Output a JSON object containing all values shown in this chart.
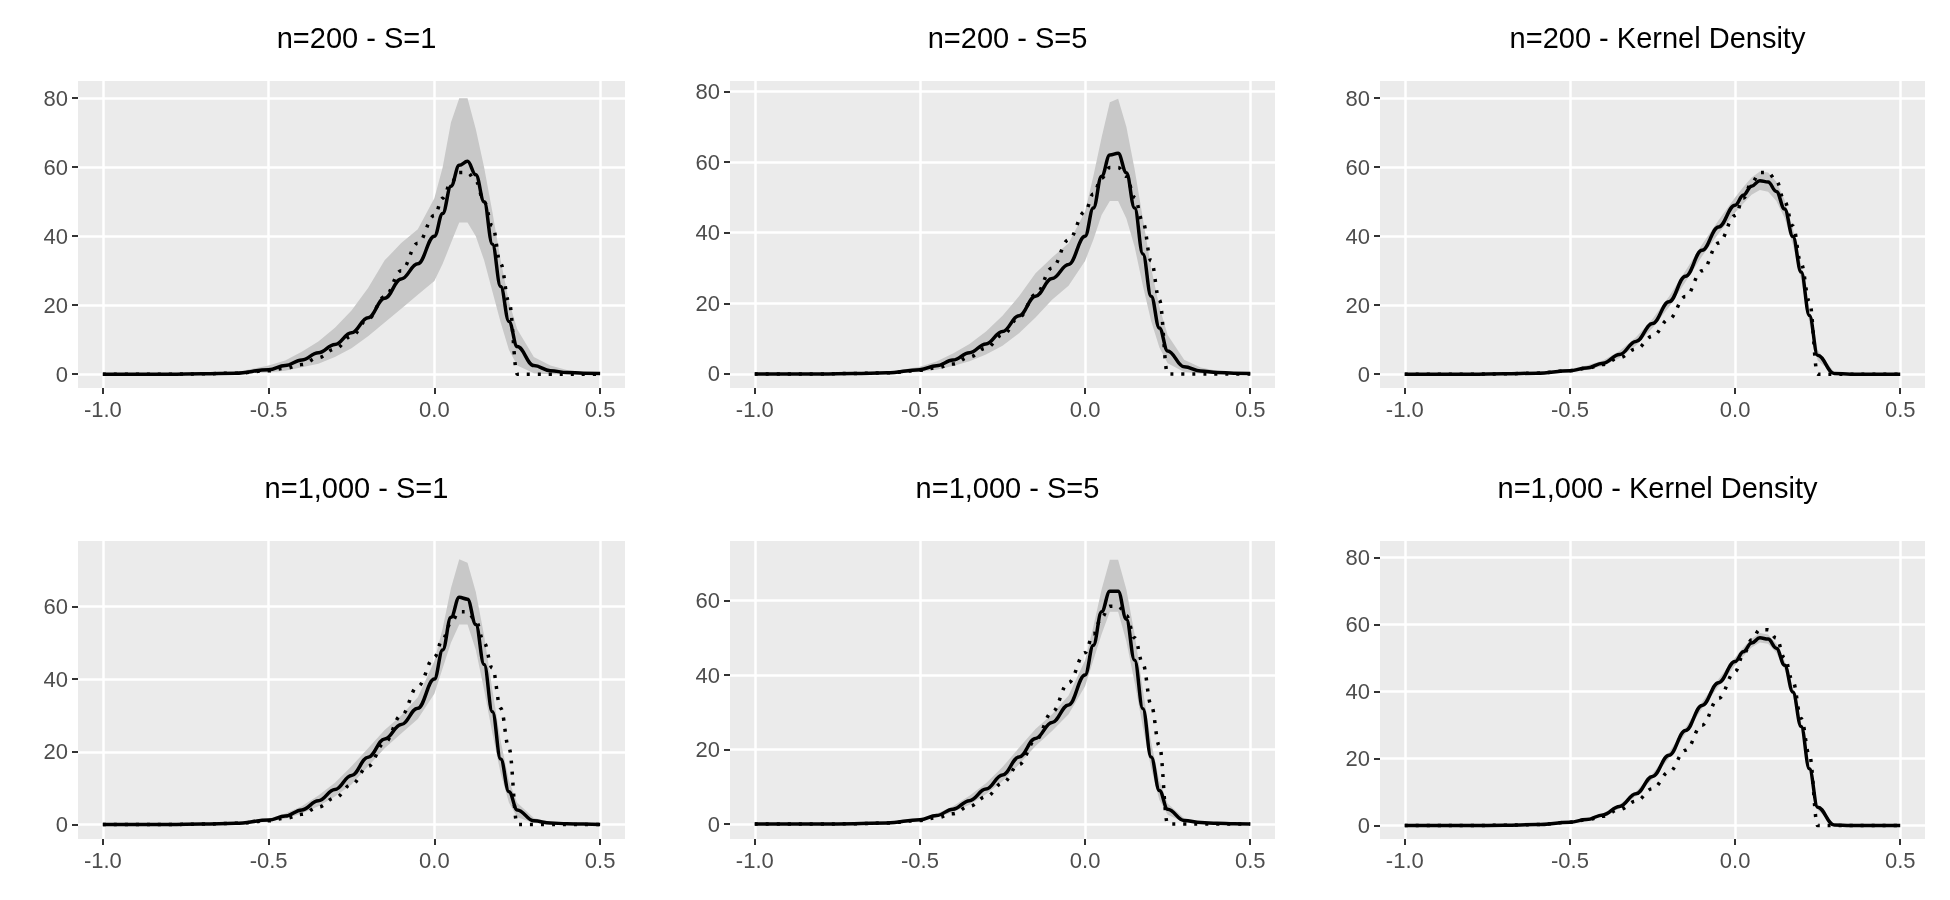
{
  "chart_data": [
    {
      "type": "line",
      "title": "n=200 - S=1",
      "marker": "none",
      "grid": true,
      "xlim": [
        -1.075,
        0.575
      ],
      "xticks": [
        {
          "value": -1,
          "label": "-1.0"
        },
        {
          "value": -0.5,
          "label": "-0.5"
        },
        {
          "value": 0,
          "label": "0.0"
        },
        {
          "value": 0.5,
          "label": "0.5"
        }
      ],
      "ylim": [
        -4,
        85
      ],
      "yticks": [
        0,
        20,
        40,
        60,
        80
      ],
      "x": [
        -1.0,
        -0.9,
        -0.8,
        -0.7,
        -0.6,
        -0.5,
        -0.45,
        -0.4,
        -0.35,
        -0.3,
        -0.25,
        -0.2,
        -0.15,
        -0.1,
        -0.05,
        0,
        0.025,
        0.05,
        0.075,
        0.1,
        0.125,
        0.15,
        0.175,
        0.2,
        0.225,
        0.25,
        0.3,
        0.35,
        0.4,
        0.45,
        0.5
      ],
      "series": [
        {
          "type": "line",
          "color": "#000000",
          "line_style": "solid",
          "values": [
            0,
            0,
            0,
            0.1,
            0.3,
            1.3,
            2.5,
            4.1,
            6.2,
            8.6,
            12,
            16.4,
            22,
            27.6,
            32,
            40,
            46.6,
            54.5,
            60.6,
            61.7,
            57.8,
            50,
            37.7,
            25.4,
            15.3,
            8,
            2.5,
            1,
            0.5,
            0.3,
            0.2
          ],
          "upper": [
            0,
            0,
            0,
            0.1,
            0.6,
            2.5,
            4,
            6.5,
            9.5,
            13.5,
            18.5,
            25,
            33,
            38,
            42,
            51,
            60,
            73,
            80,
            80,
            71,
            60,
            47,
            33,
            21,
            13,
            5,
            2.5,
            1.2,
            0.6,
            0.3
          ],
          "lower": [
            0,
            0,
            0,
            0,
            0.1,
            0.5,
            1,
            2,
            3,
            5,
            7.5,
            11,
            15,
            19,
            23,
            27,
            32,
            38,
            44,
            44,
            40,
            33,
            24,
            15,
            7,
            2.5,
            0.3,
            0,
            0,
            0,
            0
          ]
        },
        {
          "type": "line",
          "color": "#000000",
          "line_style": "dotted",
          "values": [
            0,
            0,
            0,
            0.1,
            0.3,
            1,
            1.7,
            2.8,
            4.8,
            7.3,
            11,
            16,
            22.5,
            30,
            38,
            46,
            51,
            55.5,
            58.5,
            58.5,
            56,
            50,
            43,
            32,
            21,
            0,
            0,
            0,
            0,
            0,
            0
          ]
        }
      ]
    },
    {
      "type": "line",
      "title": "n=200 - S=5",
      "marker": "none",
      "grid": true,
      "xlim": [
        -1.075,
        0.575
      ],
      "xticks": [
        {
          "value": -1,
          "label": "-1.0"
        },
        {
          "value": -0.5,
          "label": "-0.5"
        },
        {
          "value": 0,
          "label": "0.0"
        },
        {
          "value": 0.5,
          "label": "0.5"
        }
      ],
      "ylim": [
        -4,
        83
      ],
      "yticks": [
        0,
        20,
        40,
        60,
        80
      ],
      "x": [
        -1.0,
        -0.9,
        -0.8,
        -0.7,
        -0.6,
        -0.5,
        -0.45,
        -0.4,
        -0.35,
        -0.3,
        -0.25,
        -0.2,
        -0.15,
        -0.1,
        -0.05,
        0,
        0.025,
        0.05,
        0.075,
        0.1,
        0.125,
        0.15,
        0.175,
        0.2,
        0.225,
        0.25,
        0.3,
        0.35,
        0.4,
        0.45,
        0.5
      ],
      "series": [
        {
          "type": "line",
          "color": "#000000",
          "line_style": "solid",
          "values": [
            0,
            0,
            0,
            0.1,
            0.3,
            1.2,
            2.3,
            3.9,
            6,
            8.5,
            12,
            16.5,
            22,
            27,
            31,
            39,
            47,
            56,
            62,
            62.5,
            57,
            47,
            34,
            22,
            13,
            6.5,
            2,
            0.8,
            0.4,
            0.2,
            0.1
          ],
          "upper": [
            0,
            0,
            0,
            0.1,
            0.5,
            2,
            3.5,
            5.8,
            8.5,
            12,
            16.5,
            22,
            28.5,
            33,
            37,
            46,
            56,
            67,
            77,
            78,
            70,
            58,
            44,
            30,
            19,
            11,
            4,
            1.8,
            0.9,
            0.4,
            0.2
          ],
          "lower": [
            0,
            0,
            0,
            0,
            0.1,
            0.6,
            1.2,
            2.2,
            3.6,
            5.5,
            8,
            11.5,
            16,
            21,
            25,
            32,
            38,
            45,
            49,
            49,
            44,
            36,
            25,
            15,
            7.5,
            3,
            0.5,
            0.1,
            0,
            0,
            0
          ]
        },
        {
          "type": "line",
          "color": "#000000",
          "line_style": "dotted",
          "values": [
            0,
            0,
            0,
            0.1,
            0.3,
            1,
            1.7,
            2.8,
            4.8,
            7.3,
            11,
            16,
            22.5,
            30,
            38,
            46,
            51,
            55.5,
            58.5,
            58.5,
            56,
            50,
            43,
            32,
            21,
            0,
            0,
            0,
            0,
            0,
            0
          ]
        }
      ]
    },
    {
      "type": "line",
      "title": "n=200 - Kernel Density",
      "marker": "none",
      "grid": true,
      "xlim": [
        -1.075,
        0.575
      ],
      "xticks": [
        {
          "value": -1,
          "label": "-1.0"
        },
        {
          "value": -0.5,
          "label": "-0.5"
        },
        {
          "value": 0,
          "label": "0.0"
        },
        {
          "value": 0.5,
          "label": "0.5"
        }
      ],
      "ylim": [
        -4,
        85
      ],
      "yticks": [
        0,
        20,
        40,
        60,
        80
      ],
      "x": [
        -1.0,
        -0.9,
        -0.8,
        -0.7,
        -0.6,
        -0.5,
        -0.45,
        -0.4,
        -0.35,
        -0.3,
        -0.25,
        -0.2,
        -0.15,
        -0.1,
        -0.05,
        0,
        0.025,
        0.05,
        0.075,
        0.1,
        0.125,
        0.15,
        0.175,
        0.2,
        0.225,
        0.25,
        0.3,
        0.35,
        0.4,
        0.45,
        0.5
      ],
      "series": [
        {
          "type": "line",
          "color": "#000000",
          "line_style": "solid",
          "values": [
            0,
            0,
            0,
            0.1,
            0.3,
            1,
            1.8,
            3.2,
            5.7,
            9.5,
            14.7,
            21,
            28.4,
            35.9,
            42.7,
            49,
            51.9,
            54.5,
            56.1,
            55.7,
            53,
            47.9,
            39.9,
            29.6,
            17,
            5.5,
            0.2,
            0,
            0,
            0,
            0
          ],
          "upper": [
            0,
            0,
            0,
            0.2,
            0.5,
            1.5,
            2.5,
            4,
            6.7,
            10.7,
            16,
            22.5,
            30,
            37.6,
            44.6,
            51.2,
            54.3,
            57,
            58.8,
            58.5,
            55.8,
            50.5,
            42.3,
            31.8,
            19,
            7,
            0.6,
            0.1,
            0,
            0,
            0
          ],
          "lower": [
            0,
            0,
            0,
            0,
            0.1,
            0.6,
            1.2,
            2.4,
            4.7,
            8.3,
            13.4,
            19.5,
            26.8,
            34.2,
            40.8,
            46.8,
            49.5,
            52,
            53.4,
            52.9,
            50.2,
            45.3,
            37.5,
            27.4,
            15,
            4,
            0,
            0,
            0,
            0,
            0
          ]
        },
        {
          "type": "line",
          "color": "#000000",
          "line_style": "dotted",
          "values": [
            0,
            0,
            0,
            0.1,
            0.3,
            1,
            1.7,
            2.8,
            4.8,
            7.3,
            11,
            16,
            22.5,
            30,
            38,
            46,
            51,
            55.5,
            58.5,
            58.5,
            56,
            50,
            43,
            32,
            21,
            0,
            0,
            0,
            0,
            0,
            0
          ]
        }
      ]
    },
    {
      "type": "line",
      "title": "n=1,000 - S=1",
      "marker": "none",
      "grid": true,
      "xlim": [
        -1.075,
        0.575
      ],
      "xticks": [
        {
          "value": -1,
          "label": "-1.0"
        },
        {
          "value": -0.5,
          "label": "-0.5"
        },
        {
          "value": 0,
          "label": "0.0"
        },
        {
          "value": 0.5,
          "label": "0.5"
        }
      ],
      "ylim": [
        -4,
        78
      ],
      "yticks": [
        0,
        20,
        40,
        60
      ],
      "x": [
        -1.0,
        -0.9,
        -0.8,
        -0.7,
        -0.6,
        -0.5,
        -0.45,
        -0.4,
        -0.35,
        -0.3,
        -0.25,
        -0.2,
        -0.15,
        -0.1,
        -0.05,
        0,
        0.025,
        0.05,
        0.075,
        0.1,
        0.125,
        0.15,
        0.175,
        0.2,
        0.225,
        0.25,
        0.3,
        0.35,
        0.4,
        0.45,
        0.5
      ],
      "series": [
        {
          "type": "line",
          "color": "#000000",
          "line_style": "solid",
          "values": [
            0,
            0,
            0,
            0.1,
            0.3,
            1.2,
            2.3,
            4,
            6.5,
            9.6,
            13.5,
            18.5,
            23.5,
            27.5,
            32,
            40,
            48,
            57,
            62.5,
            62,
            55,
            44,
            31,
            18,
            9,
            4,
            1,
            0.4,
            0.2,
            0.1,
            0
          ],
          "upper": [
            0,
            0,
            0,
            0.1,
            0.4,
            1.6,
            3,
            5,
            8,
            11.5,
            16,
            21,
            26,
            30,
            35,
            45,
            54,
            65,
            73,
            72,
            64,
            52,
            37,
            23,
            12,
            6,
            1.8,
            0.7,
            0.3,
            0.2,
            0.1
          ],
          "lower": [
            0,
            0,
            0,
            0,
            0.2,
            0.8,
            1.6,
            3,
            5,
            7.7,
            11,
            16,
            21,
            25,
            29,
            36,
            43,
            50,
            55,
            55,
            48,
            37,
            25,
            14,
            6,
            2,
            0.4,
            0.1,
            0,
            0,
            0
          ]
        },
        {
          "type": "line",
          "color": "#000000",
          "line_style": "dotted",
          "values": [
            0,
            0,
            0,
            0.1,
            0.3,
            1,
            1.7,
            2.8,
            4.8,
            7.3,
            11,
            16,
            22.5,
            30,
            38,
            46,
            51,
            55.5,
            58.5,
            58.5,
            56,
            50,
            43,
            32,
            21,
            0,
            0,
            0,
            0,
            0,
            0
          ]
        }
      ]
    },
    {
      "type": "line",
      "title": "n=1,000 - S=5",
      "marker": "none",
      "grid": true,
      "xlim": [
        -1.075,
        0.575
      ],
      "xticks": [
        {
          "value": -1,
          "label": "-1.0"
        },
        {
          "value": -0.5,
          "label": "-0.5"
        },
        {
          "value": 0,
          "label": "0.0"
        },
        {
          "value": 0.5,
          "label": "0.5"
        }
      ],
      "ylim": [
        -4,
        76
      ],
      "yticks": [
        0,
        20,
        40,
        60
      ],
      "x": [
        -1.0,
        -0.9,
        -0.8,
        -0.7,
        -0.6,
        -0.5,
        -0.45,
        -0.4,
        -0.35,
        -0.3,
        -0.25,
        -0.2,
        -0.15,
        -0.1,
        -0.05,
        0,
        0.025,
        0.05,
        0.075,
        0.1,
        0.125,
        0.15,
        0.175,
        0.2,
        0.225,
        0.25,
        0.3,
        0.35,
        0.4,
        0.45,
        0.5
      ],
      "series": [
        {
          "type": "line",
          "color": "#000000",
          "line_style": "solid",
          "values": [
            0,
            0,
            0,
            0.1,
            0.3,
            1.2,
            2.3,
            4,
            6.3,
            9.4,
            13.2,
            18,
            23,
            27.3,
            32,
            40,
            48,
            57,
            62.5,
            62.5,
            55,
            44,
            31,
            18,
            9,
            4,
            1,
            0.4,
            0.2,
            0.1,
            0
          ],
          "upper": [
            0,
            0,
            0,
            0.1,
            0.4,
            1.5,
            2.8,
            4.8,
            7.6,
            11,
            15.3,
            20.5,
            25.5,
            29.5,
            34.5,
            44,
            53,
            63,
            71,
            71,
            63,
            51,
            36,
            22,
            11.5,
            5.5,
            1.6,
            0.6,
            0.3,
            0.2,
            0.1
          ],
          "lower": [
            0,
            0,
            0,
            0,
            0.2,
            0.9,
            1.8,
            3.2,
            5.2,
            8,
            11.5,
            16,
            21,
            25,
            29.5,
            37,
            44,
            51,
            57,
            57,
            49,
            38,
            26,
            15,
            6.5,
            2.5,
            0.5,
            0.1,
            0,
            0,
            0
          ]
        },
        {
          "type": "line",
          "color": "#000000",
          "line_style": "dotted",
          "values": [
            0,
            0,
            0,
            0.1,
            0.3,
            1,
            1.7,
            2.8,
            4.8,
            7.3,
            11,
            16,
            22.5,
            30,
            38,
            46,
            51,
            55.5,
            58.5,
            58.5,
            56,
            50,
            43,
            32,
            21,
            0,
            0,
            0,
            0,
            0,
            0
          ]
        }
      ]
    },
    {
      "type": "line",
      "title": "n=1,000 - Kernel Density",
      "marker": "none",
      "grid": true,
      "xlim": [
        -1.075,
        0.575
      ],
      "xticks": [
        {
          "value": -1,
          "label": "-1.0"
        },
        {
          "value": -0.5,
          "label": "-0.5"
        },
        {
          "value": 0,
          "label": "0.0"
        },
        {
          "value": 0.5,
          "label": "0.5"
        }
      ],
      "ylim": [
        -4,
        85
      ],
      "yticks": [
        0,
        20,
        40,
        60,
        80
      ],
      "x": [
        -1.0,
        -0.9,
        -0.8,
        -0.7,
        -0.6,
        -0.5,
        -0.45,
        -0.4,
        -0.35,
        -0.3,
        -0.25,
        -0.2,
        -0.15,
        -0.1,
        -0.05,
        0,
        0.025,
        0.05,
        0.075,
        0.1,
        0.125,
        0.15,
        0.175,
        0.2,
        0.225,
        0.25,
        0.3,
        0.35,
        0.4,
        0.45,
        0.5
      ],
      "series": [
        {
          "type": "line",
          "color": "#000000",
          "line_style": "solid",
          "values": [
            0,
            0,
            0,
            0.1,
            0.3,
            1,
            1.8,
            3.2,
            5.7,
            9.5,
            14.7,
            21,
            28.4,
            35.9,
            42.7,
            49,
            51.9,
            54.5,
            56.1,
            55.7,
            53,
            47.9,
            39.9,
            29.6,
            17,
            5.5,
            0.2,
            0,
            0,
            0,
            0
          ],
          "upper": [
            0,
            0,
            0,
            0.1,
            0.4,
            1.3,
            2.2,
            3.7,
            6.3,
            10.2,
            15.5,
            21.9,
            29.3,
            36.9,
            43.8,
            50.2,
            53.2,
            55.8,
            57.5,
            57.1,
            54.4,
            49.2,
            41.1,
            30.7,
            18,
            6.3,
            0.4,
            0,
            0,
            0,
            0
          ],
          "lower": [
            0,
            0,
            0,
            0,
            0.2,
            0.7,
            1.4,
            2.7,
            5.1,
            8.8,
            13.9,
            20.1,
            27.5,
            34.9,
            41.6,
            47.8,
            50.6,
            53.2,
            54.7,
            54.3,
            51.6,
            46.6,
            38.7,
            28.5,
            16,
            4.7,
            0,
            0,
            0,
            0,
            0
          ]
        },
        {
          "type": "line",
          "color": "#000000",
          "line_style": "dotted",
          "values": [
            0,
            0,
            0,
            0.1,
            0.3,
            1,
            1.7,
            2.8,
            4.8,
            7.3,
            11,
            16,
            22.5,
            30,
            38,
            46,
            51,
            55.5,
            58.5,
            58.5,
            56,
            50,
            43,
            32,
            21,
            0,
            0,
            0,
            0,
            0,
            0
          ]
        }
      ]
    }
  ]
}
